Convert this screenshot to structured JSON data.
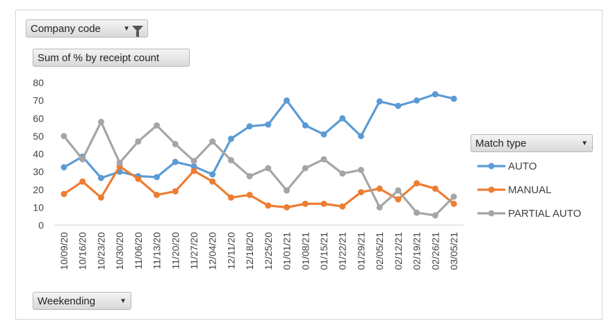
{
  "filter_button": {
    "label": "Company code",
    "icon": "funnel-icon"
  },
  "values_button": {
    "label": "Sum of % by receipt count"
  },
  "legend_button": {
    "label": "Match type"
  },
  "axis_button": {
    "label": "Weekending"
  },
  "chart_data": {
    "type": "line",
    "categories": [
      "10/09/20",
      "10/16/20",
      "10/23/20",
      "10/30/20",
      "11/06/20",
      "11/13/20",
      "11/20/20",
      "11/27/20",
      "12/04/20",
      "12/11/20",
      "12/18/20",
      "12/25/20",
      "01/01/21",
      "01/08/21",
      "01/15/21",
      "01/22/21",
      "01/29/21",
      "02/05/21",
      "02/12/21",
      "02/19/21",
      "02/26/21",
      "03/05/21"
    ],
    "series": [
      {
        "name": "AUTO",
        "color": "#5b9bd5",
        "values": [
          32.5,
          38.5,
          26.5,
          30,
          27.5,
          27,
          35.5,
          33,
          28.5,
          48.5,
          55.5,
          56.5,
          70,
          56,
          51,
          60,
          50,
          69.5,
          67,
          70,
          73.5,
          71
        ]
      },
      {
        "name": "MANUAL",
        "color": "#ed7d31",
        "values": [
          17.5,
          24.5,
          15.5,
          33,
          26,
          17,
          19,
          30.5,
          24.5,
          15.5,
          17,
          11,
          10,
          12,
          12,
          10.5,
          18.5,
          20.5,
          14.5,
          23.5,
          20.5,
          12
        ]
      },
      {
        "name": "PARTIAL AUTO",
        "color": "#a5a5a5",
        "values": [
          50,
          37,
          58,
          35,
          47,
          56,
          45.5,
          36,
          47,
          36.5,
          27.5,
          32,
          19.5,
          32,
          37,
          29,
          31,
          10,
          19.5,
          7,
          5.5,
          16
        ]
      }
    ],
    "yticks": [
      "0",
      "10",
      "20",
      "30",
      "40",
      "50",
      "60",
      "70",
      "80"
    ],
    "ylim": [
      0,
      80
    ],
    "grid": false,
    "legend_position": "right"
  }
}
